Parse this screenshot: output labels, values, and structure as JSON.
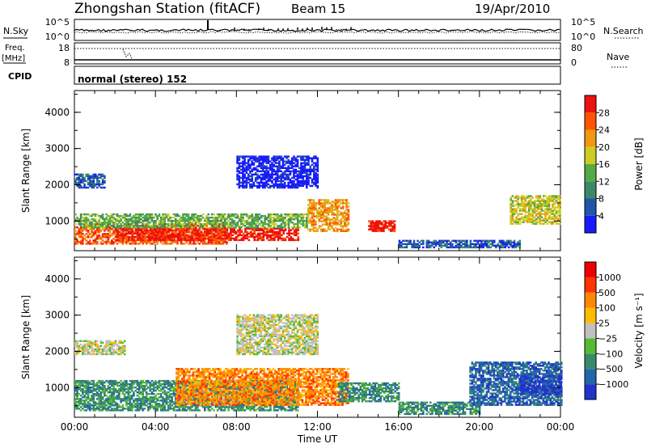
{
  "header": {
    "station": "Zhongshan Station (fitACF)",
    "beam": "Beam 15",
    "date": "19/Apr/2010"
  },
  "strips": {
    "nsky_label": "N.Sky",
    "nsky_ticks": [
      "10^5",
      "10^0"
    ],
    "nsearch_label": "N.Search",
    "nsearch_ticks": [
      "10^5",
      "10^0"
    ],
    "freq_label_1": "Freq.",
    "freq_label_2": "[MHz]",
    "freq_ticks": [
      "18",
      "8"
    ],
    "nave_label": "Nave",
    "nave_ticks": [
      "80",
      "0"
    ],
    "cpid_label": "CPID",
    "cpid_value": "normal (stereo) 152"
  },
  "chart_data": [
    {
      "type": "heatmap",
      "panel": "power",
      "ylabel": "Slant Range [km]",
      "ylim": [
        180,
        4600
      ],
      "yticks": [
        "1000",
        "2000",
        "3000",
        "4000"
      ],
      "colorbar_label": "Power [dB]",
      "colorbar_ticks": [
        "4",
        "8",
        "12",
        "16",
        "20",
        "24",
        "28"
      ],
      "colors": [
        "#1a1aff",
        "#2255aa",
        "#3a8a6a",
        "#55aa44",
        "#cccc22",
        "#ee9911",
        "#ff5500",
        "#ee1111"
      ],
      "regions": [
        {
          "t0": 0.0,
          "t1": 7.5,
          "r0": 350,
          "r1": 900,
          "level": 6
        },
        {
          "t0": 2.0,
          "t1": 11.0,
          "r0": 450,
          "r1": 800,
          "level": 7
        },
        {
          "t0": 0.0,
          "t1": 11.5,
          "r0": 800,
          "r1": 1200,
          "level": 3
        },
        {
          "t0": 11.5,
          "t1": 13.5,
          "r0": 700,
          "r1": 1600,
          "level": 5
        },
        {
          "t0": 14.5,
          "t1": 15.8,
          "r0": 700,
          "r1": 1000,
          "level": 7
        },
        {
          "t0": 16.0,
          "t1": 22.0,
          "r0": 250,
          "r1": 450,
          "level": 1
        },
        {
          "t0": 21.5,
          "t1": 24.0,
          "r0": 900,
          "r1": 1700,
          "level": 4
        },
        {
          "t0": 0.0,
          "t1": 1.5,
          "r0": 1900,
          "r1": 2300,
          "level": 1
        },
        {
          "t0": 8.0,
          "t1": 12.0,
          "r0": 1900,
          "r1": 2800,
          "level": 0
        }
      ]
    },
    {
      "type": "heatmap",
      "panel": "velocity",
      "ylabel": "Slant Range [km]",
      "ylim": [
        180,
        4600
      ],
      "yticks": [
        "1000",
        "2000",
        "3000",
        "4000"
      ],
      "xlabel": "Time UT",
      "xticks": [
        "00:00",
        "04:00",
        "08:00",
        "12:00",
        "16:00",
        "20:00",
        "00:00"
      ],
      "xlim": [
        0,
        24
      ],
      "colorbar_label": "Velocity [m s⁻¹]",
      "colorbar_ticks": [
        "1000",
        "500",
        "100",
        "25",
        "−25",
        "−100",
        "−500",
        "−1000"
      ],
      "colors": [
        "#2233cc",
        "#2266aa",
        "#3a8a6a",
        "#55bb33",
        "#c0c0c0",
        "#ffbb00",
        "#ff8800",
        "#ff3300",
        "#ee0000"
      ],
      "regions": [
        {
          "t0": 0.0,
          "t1": 11.0,
          "r0": 350,
          "r1": 1200,
          "level": 2
        },
        {
          "t0": 5.0,
          "t1": 13.5,
          "r0": 500,
          "r1": 1500,
          "level": 6
        },
        {
          "t0": 13.0,
          "t1": 16.0,
          "r0": 600,
          "r1": 1100,
          "level": 2
        },
        {
          "t0": 16.0,
          "t1": 20.0,
          "r0": 250,
          "r1": 600,
          "level": 2
        },
        {
          "t0": 19.5,
          "t1": 24.0,
          "r0": 500,
          "r1": 1700,
          "level": 1
        },
        {
          "t0": 22.0,
          "t1": 24.0,
          "r0": 800,
          "r1": 1300,
          "level": 0
        },
        {
          "t0": 0.0,
          "t1": 2.5,
          "r0": 1900,
          "r1": 2300,
          "level": 4
        },
        {
          "t0": 8.0,
          "t1": 12.0,
          "r0": 1900,
          "r1": 3000,
          "level": 4
        }
      ]
    }
  ]
}
